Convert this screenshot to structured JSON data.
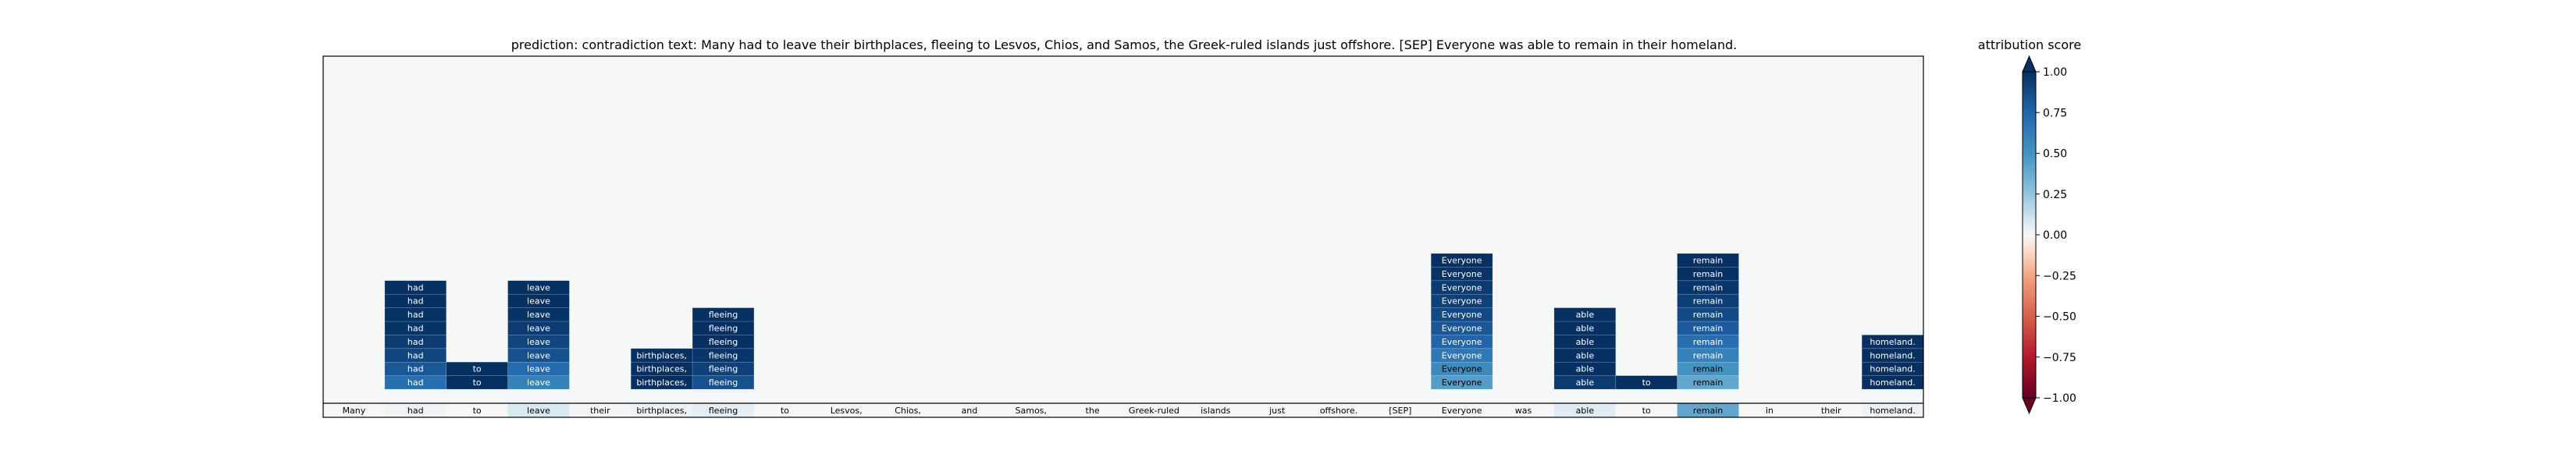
{
  "chart_data": {
    "type": "heatmap",
    "title": "prediction:  contradiction     text:  Many had to leave their birthplaces, fleeing to Lesvos, Chios, and Samos, the Greek-ruled islands just offshore. [SEP] Everyone was able to remain in their homeland.",
    "tokens": [
      "Many",
      "had",
      "to",
      "leave",
      "their",
      "birthplaces,",
      "fleeing",
      "to",
      "Lesvos,",
      "Chios,",
      "and",
      "Samos,",
      "the",
      "Greek-ruled",
      "islands",
      "just",
      "offshore.",
      "[SEP]",
      "Everyone",
      "was",
      "able",
      "to",
      "remain",
      "in",
      "their",
      "homeland."
    ],
    "base_row_scores": [
      0.0,
      0.02,
      0.0,
      0.08,
      0.01,
      0.03,
      0.05,
      0.0,
      0.0,
      0.0,
      0.0,
      0.0,
      0.0,
      0.0,
      0.0,
      0.0,
      0.0,
      0.0,
      0.0,
      0.0,
      0.06,
      0.0,
      0.4,
      0.0,
      0.0,
      0.02
    ],
    "stacks": [
      {
        "token": "had",
        "column": 1,
        "values": [
          0.7,
          0.82,
          0.9,
          0.95,
          0.98,
          0.99,
          1.0,
          1.0
        ]
      },
      {
        "token": "to",
        "column": 2,
        "values": [
          1.0,
          1.0
        ]
      },
      {
        "token": "leave",
        "column": 3,
        "values": [
          0.6,
          0.72,
          0.85,
          0.9,
          0.95,
          0.98,
          1.0,
          1.0
        ]
      },
      {
        "token": "birthplaces,",
        "column": 5,
        "values": [
          1.0,
          1.0,
          1.0
        ]
      },
      {
        "token": "fleeing",
        "column": 6,
        "values": [
          0.85,
          0.92,
          0.97,
          1.0,
          1.0,
          1.0
        ]
      },
      {
        "token": "Everyone",
        "column": 18,
        "values": [
          0.45,
          0.55,
          0.65,
          0.75,
          0.82,
          0.88,
          0.92,
          0.95,
          0.98,
          1.0
        ]
      },
      {
        "token": "able",
        "column": 20,
        "values": [
          0.95,
          1.0,
          1.0,
          1.0,
          1.0,
          1.0
        ]
      },
      {
        "token": "to",
        "column": 21,
        "values": [
          1.0
        ]
      },
      {
        "token": "remain",
        "column": 22,
        "values": [
          0.4,
          0.5,
          0.6,
          0.7,
          0.8,
          0.88,
          0.93,
          0.97,
          1.0,
          1.0
        ]
      },
      {
        "token": "homeland.",
        "column": 25,
        "values": [
          1.0,
          1.0,
          1.0,
          1.0
        ]
      }
    ],
    "colorbar": {
      "label": "attribution score",
      "range": [
        -1.0,
        1.0
      ],
      "ticks": [
        1.0,
        0.75,
        0.5,
        0.25,
        0.0,
        -0.25,
        -0.5,
        -0.75,
        -1.0
      ],
      "tick_labels": [
        "1.00",
        "0.75",
        "0.50",
        "0.25",
        "0.00",
        "−0.25",
        "−0.50",
        "−0.75",
        "−1.00"
      ],
      "colormap": "RdBu",
      "extend": "both"
    },
    "colors": {
      "background": "#f6f7f7",
      "positive_max": "#053061",
      "negative_max": "#67001f",
      "neutral": "#f7f7f7"
    }
  }
}
